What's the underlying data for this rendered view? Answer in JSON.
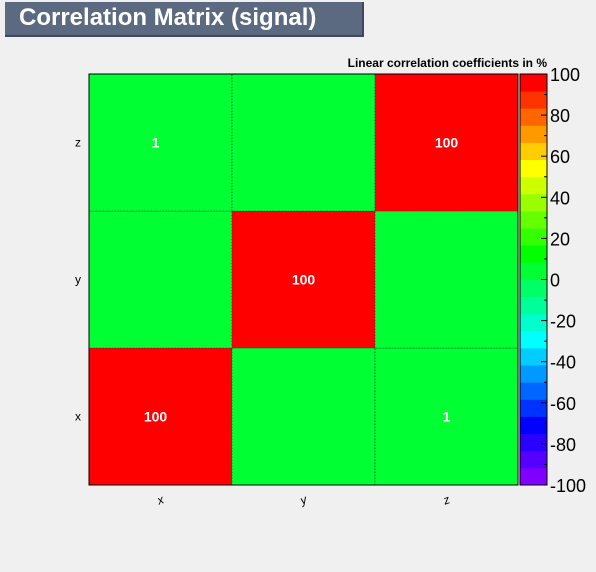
{
  "page": {
    "title": "Correlation Matrix (signal)"
  },
  "chart_data": {
    "type": "heatmap",
    "title": "Linear correlation coefficients in %",
    "x_categories": [
      "x",
      "y",
      "z"
    ],
    "y_categories": [
      "x",
      "y",
      "z"
    ],
    "cells": [
      {
        "x": "x",
        "y": "x",
        "value": 100,
        "label": "100"
      },
      {
        "x": "y",
        "y": "x",
        "value": 0,
        "label": ""
      },
      {
        "x": "z",
        "y": "x",
        "value": 1,
        "label": "1"
      },
      {
        "x": "x",
        "y": "y",
        "value": 0,
        "label": ""
      },
      {
        "x": "y",
        "y": "y",
        "value": 100,
        "label": "100"
      },
      {
        "x": "z",
        "y": "y",
        "value": 0,
        "label": ""
      },
      {
        "x": "x",
        "y": "z",
        "value": 1,
        "label": "1"
      },
      {
        "x": "y",
        "y": "z",
        "value": 0,
        "label": ""
      },
      {
        "x": "z",
        "y": "z",
        "value": 100,
        "label": "100"
      }
    ],
    "zlim": [
      -100,
      100
    ],
    "colorbar_ticks": [
      "100",
      "80",
      "60",
      "40",
      "20",
      "0",
      "-20",
      "-40",
      "-60",
      "-80",
      "-100"
    ],
    "palette": [
      "#7f00ff",
      "#5500ff",
      "#2a00ff",
      "#0000ff",
      "#0033ff",
      "#0066ff",
      "#0099ff",
      "#00ccff",
      "#00ffff",
      "#00ffcc",
      "#00ff99",
      "#00ff66",
      "#00ff33",
      "#00ff00",
      "#33ff00",
      "#66ff00",
      "#99ff00",
      "#ccff00",
      "#ffff00",
      "#ffcc00",
      "#ff9900",
      "#ff6600",
      "#ff3300",
      "#ff0000"
    ],
    "label_color": "#ffffff",
    "grid": true,
    "legend": "right-colorbar"
  }
}
